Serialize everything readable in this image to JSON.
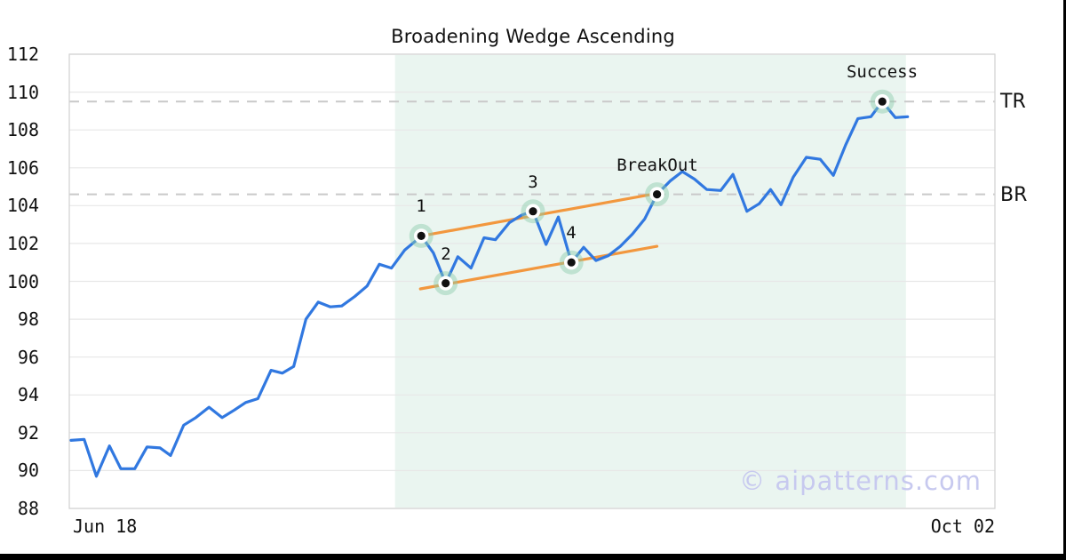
{
  "watermark": {
    "text": "© aipatterns.com"
  },
  "chart_data": {
    "type": "line",
    "title": "Broadening Wedge Ascending",
    "xlabel": "",
    "ylabel": "",
    "x_tick_labels": [
      "Jun 18",
      "Oct 02"
    ],
    "x_domain_days": [
      0,
      106
    ],
    "y_domain": [
      88,
      112
    ],
    "y_ticks": [
      88,
      90,
      92,
      94,
      96,
      98,
      100,
      102,
      104,
      106,
      108,
      110,
      112
    ],
    "grid": "horizontal",
    "legend": "none",
    "pattern_zone_days": [
      37.3,
      95.8
    ],
    "levels": [
      {
        "label": "TR",
        "value": 109.5
      },
      {
        "label": "BR",
        "value": 104.6
      }
    ],
    "trendlines": [
      {
        "name": "upper-resistance",
        "from": {
          "day": 40.3,
          "value": 102.4
        },
        "to": {
          "day": 67.6,
          "value": 104.67
        }
      },
      {
        "name": "lower-support",
        "from": {
          "day": 40.2,
          "value": 99.6
        },
        "to": {
          "day": 67.3,
          "value": 101.85
        }
      }
    ],
    "annotations": [
      {
        "label": "1",
        "day": 40.3,
        "value": 102.4
      },
      {
        "label": "2",
        "day": 43.1,
        "value": 99.9
      },
      {
        "label": "3",
        "day": 53.1,
        "value": 103.7
      },
      {
        "label": "4",
        "day": 57.5,
        "value": 101.0
      },
      {
        "label": "BreakOut",
        "day": 67.3,
        "value": 104.6
      },
      {
        "label": "Success",
        "day": 93.1,
        "value": 109.5
      }
    ],
    "series": [
      {
        "name": "price",
        "points": [
          [
            0.2,
            91.6
          ],
          [
            1.7,
            91.65
          ],
          [
            3.1,
            89.7
          ],
          [
            4.6,
            91.3
          ],
          [
            5.9,
            90.1
          ],
          [
            7.5,
            90.1
          ],
          [
            8.9,
            91.25
          ],
          [
            10.4,
            91.2
          ],
          [
            11.6,
            90.8
          ],
          [
            13.1,
            92.4
          ],
          [
            14.5,
            92.8
          ],
          [
            16.0,
            93.35
          ],
          [
            17.5,
            92.8
          ],
          [
            18.9,
            93.2
          ],
          [
            20.2,
            93.6
          ],
          [
            21.6,
            93.8
          ],
          [
            23.1,
            95.3
          ],
          [
            24.4,
            95.15
          ],
          [
            25.7,
            95.5
          ],
          [
            27.1,
            98.0
          ],
          [
            28.5,
            98.9
          ],
          [
            29.9,
            98.65
          ],
          [
            31.2,
            98.7
          ],
          [
            32.7,
            99.2
          ],
          [
            34.1,
            99.75
          ],
          [
            35.5,
            100.9
          ],
          [
            36.9,
            100.7
          ],
          [
            38.4,
            101.65
          ],
          [
            39.7,
            102.15
          ],
          [
            40.3,
            102.4
          ],
          [
            41.7,
            101.5
          ],
          [
            43.1,
            99.9
          ],
          [
            44.5,
            101.3
          ],
          [
            46.0,
            100.7
          ],
          [
            47.5,
            102.3
          ],
          [
            48.8,
            102.2
          ],
          [
            50.4,
            103.1
          ],
          [
            51.8,
            103.5
          ],
          [
            53.1,
            103.7
          ],
          [
            54.6,
            101.95
          ],
          [
            56.0,
            103.4
          ],
          [
            57.5,
            101.0
          ],
          [
            58.9,
            101.8
          ],
          [
            60.3,
            101.1
          ],
          [
            61.7,
            101.35
          ],
          [
            63.1,
            101.85
          ],
          [
            64.5,
            102.5
          ],
          [
            65.9,
            103.3
          ],
          [
            67.3,
            104.6
          ],
          [
            68.8,
            105.3
          ],
          [
            70.2,
            105.8
          ],
          [
            71.6,
            105.4
          ],
          [
            73.0,
            104.85
          ],
          [
            74.6,
            104.8
          ],
          [
            76.0,
            105.65
          ],
          [
            77.6,
            103.7
          ],
          [
            79.0,
            104.1
          ],
          [
            80.3,
            104.85
          ],
          [
            81.5,
            104.05
          ],
          [
            82.9,
            105.5
          ],
          [
            84.4,
            106.55
          ],
          [
            86.0,
            106.45
          ],
          [
            87.5,
            105.6
          ],
          [
            88.9,
            107.2
          ],
          [
            90.3,
            108.6
          ],
          [
            91.8,
            108.7
          ],
          [
            93.1,
            109.5
          ],
          [
            94.6,
            108.65
          ],
          [
            96.0,
            108.7
          ]
        ]
      }
    ],
    "colors": {
      "price_line": "#3178E0",
      "trendline": "#F2973E",
      "pattern_zone": "#EAF5F0",
      "marker_halo": "rgba(140,205,170,0.45)",
      "marker_ring": "#FFFFFF",
      "marker_dot": "#111111",
      "grid": "#E7E7E7",
      "border": "#D4D4D4",
      "dashed_level": "#C9C9C9",
      "watermark": "#C7C9EF"
    }
  }
}
